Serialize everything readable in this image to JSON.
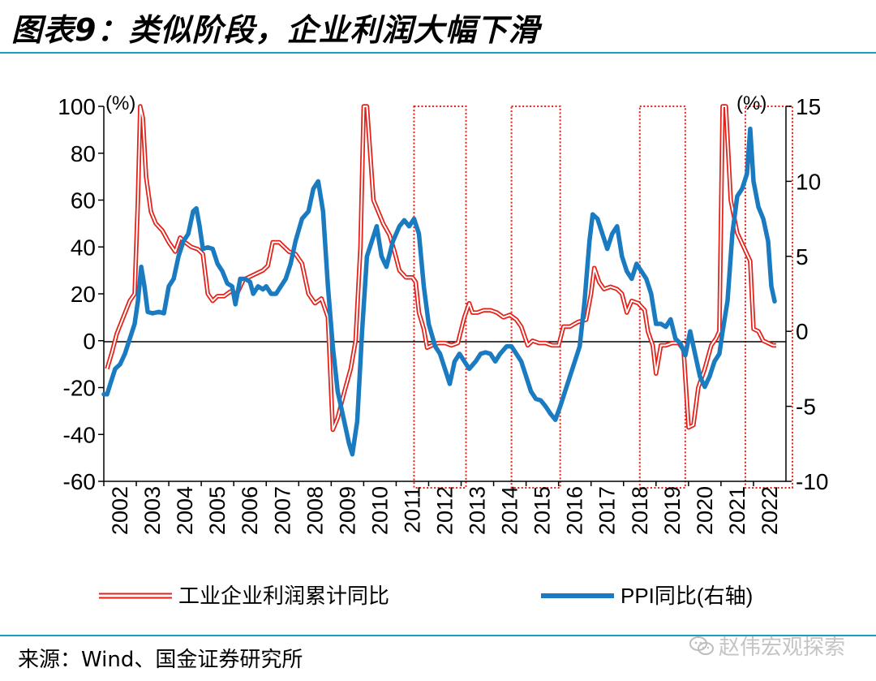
{
  "title": "图表9：类似阶段，企业利润大幅下滑",
  "source": "来源：Wind、国金证券研究所",
  "watermark": "赵伟宏观探索",
  "watermark_icon": "wechat-icon",
  "colors": {
    "profit": "#e32119",
    "ppi": "#1a7bc0",
    "box": "#e32119",
    "rule": "#1a9fc0"
  },
  "chart_data": {
    "type": "line",
    "left_unit": "(%)",
    "right_unit": "(%)",
    "ylim_left": [
      -60,
      100
    ],
    "ylim_right": [
      -10,
      15
    ],
    "left_ticks": [
      "100",
      "80",
      "60",
      "40",
      "20",
      "0",
      "-20",
      "-40",
      "-60"
    ],
    "right_ticks": [
      "15",
      "10",
      "5",
      "0",
      "-5",
      "-10"
    ],
    "x_labels": [
      "2002",
      "2003",
      "2004",
      "2005",
      "2006",
      "2007",
      "2008",
      "2009",
      "2010",
      "2011",
      "2012",
      "2013",
      "2014",
      "2015",
      "2016",
      "2017",
      "2018",
      "2019",
      "2020",
      "2021",
      "2022"
    ],
    "grid": false,
    "legend_position": "bottom",
    "highlight_periods": [
      {
        "start": 2011.55,
        "end": 2013.15
      },
      {
        "start": 2014.55,
        "end": 2016.05
      },
      {
        "start": 2018.5,
        "end": 2019.9
      },
      {
        "start": 2021.75,
        "end": 2023.2
      }
    ],
    "series": [
      {
        "name": "工业企业利润累计同比",
        "axis": "left",
        "style": "double-line",
        "points": [
          [
            2002.1,
            -12
          ],
          [
            2002.25,
            -5
          ],
          [
            2002.4,
            3
          ],
          [
            2002.6,
            10
          ],
          [
            2002.8,
            17
          ],
          [
            2002.95,
            20
          ],
          [
            2003.05,
            60
          ],
          [
            2003.12,
            100
          ],
          [
            2003.2,
            95
          ],
          [
            2003.3,
            70
          ],
          [
            2003.45,
            55
          ],
          [
            2003.6,
            50
          ],
          [
            2003.8,
            47
          ],
          [
            2004.0,
            42
          ],
          [
            2004.2,
            38
          ],
          [
            2004.35,
            44
          ],
          [
            2004.5,
            42
          ],
          [
            2004.7,
            40
          ],
          [
            2004.9,
            39
          ],
          [
            2005.05,
            37
          ],
          [
            2005.2,
            20
          ],
          [
            2005.35,
            17
          ],
          [
            2005.5,
            19
          ],
          [
            2005.7,
            19
          ],
          [
            2005.9,
            21
          ],
          [
            2006.1,
            20
          ],
          [
            2006.3,
            26
          ],
          [
            2006.6,
            28
          ],
          [
            2006.9,
            30
          ],
          [
            2007.05,
            32
          ],
          [
            2007.2,
            42
          ],
          [
            2007.4,
            42
          ],
          [
            2007.55,
            40
          ],
          [
            2007.7,
            38
          ],
          [
            2007.9,
            37
          ],
          [
            2008.1,
            33
          ],
          [
            2008.3,
            20
          ],
          [
            2008.5,
            16
          ],
          [
            2008.7,
            18
          ],
          [
            2008.9,
            10
          ],
          [
            2009.05,
            -38
          ],
          [
            2009.2,
            -33
          ],
          [
            2009.4,
            -22
          ],
          [
            2009.6,
            -12
          ],
          [
            2009.75,
            0
          ],
          [
            2009.9,
            40
          ],
          [
            2010.0,
            100
          ],
          [
            2010.1,
            100
          ],
          [
            2010.2,
            80
          ],
          [
            2010.3,
            60
          ],
          [
            2010.45,
            55
          ],
          [
            2010.6,
            50
          ],
          [
            2010.8,
            45
          ],
          [
            2010.95,
            38
          ],
          [
            2011.1,
            30
          ],
          [
            2011.3,
            27
          ],
          [
            2011.5,
            27
          ],
          [
            2011.6,
            25
          ],
          [
            2011.7,
            12
          ],
          [
            2011.85,
            5
          ],
          [
            2011.95,
            -3
          ],
          [
            2012.1,
            -2
          ],
          [
            2012.3,
            -1
          ],
          [
            2012.5,
            -1
          ],
          [
            2012.7,
            -2
          ],
          [
            2012.9,
            -1
          ],
          [
            2013.1,
            10
          ],
          [
            2013.25,
            16
          ],
          [
            2013.35,
            12
          ],
          [
            2013.5,
            12
          ],
          [
            2013.7,
            13
          ],
          [
            2013.9,
            13
          ],
          [
            2014.1,
            12
          ],
          [
            2014.3,
            10
          ],
          [
            2014.5,
            11
          ],
          [
            2014.7,
            9
          ],
          [
            2014.85,
            6
          ],
          [
            2015.05,
            -2
          ],
          [
            2015.2,
            0
          ],
          [
            2015.4,
            -1
          ],
          [
            2015.6,
            -1
          ],
          [
            2015.8,
            -2
          ],
          [
            2016.0,
            -2
          ],
          [
            2016.15,
            6
          ],
          [
            2016.35,
            6
          ],
          [
            2016.6,
            8
          ],
          [
            2016.85,
            9
          ],
          [
            2017.0,
            20
          ],
          [
            2017.1,
            31
          ],
          [
            2017.25,
            25
          ],
          [
            2017.4,
            22
          ],
          [
            2017.6,
            23
          ],
          [
            2017.8,
            22
          ],
          [
            2017.95,
            20
          ],
          [
            2018.1,
            12
          ],
          [
            2018.25,
            17
          ],
          [
            2018.45,
            16
          ],
          [
            2018.65,
            13
          ],
          [
            2018.75,
            4
          ],
          [
            2018.9,
            -2
          ],
          [
            2019.0,
            -14
          ],
          [
            2019.15,
            -2
          ],
          [
            2019.3,
            -2
          ],
          [
            2019.5,
            -1
          ],
          [
            2019.7,
            -1
          ],
          [
            2019.85,
            -4
          ],
          [
            2020.0,
            -37
          ],
          [
            2020.15,
            -36
          ],
          [
            2020.3,
            -20
          ],
          [
            2020.5,
            -12
          ],
          [
            2020.7,
            -2
          ],
          [
            2020.85,
            1
          ],
          [
            2020.95,
            4
          ],
          [
            2021.05,
            100
          ],
          [
            2021.15,
            100
          ],
          [
            2021.3,
            60
          ],
          [
            2021.5,
            46
          ],
          [
            2021.7,
            40
          ],
          [
            2021.9,
            34
          ],
          [
            2022.0,
            5
          ],
          [
            2022.15,
            4
          ],
          [
            2022.3,
            0
          ],
          [
            2022.45,
            -1
          ],
          [
            2022.6,
            -2
          ],
          [
            2022.7,
            -2
          ]
        ]
      },
      {
        "name": "PPI同比(右轴)",
        "axis": "right",
        "style": "thick-line",
        "points": [
          [
            2002.0,
            -4.2
          ],
          [
            2002.1,
            -4.2
          ],
          [
            2002.2,
            -3.5
          ],
          [
            2002.35,
            -2.5
          ],
          [
            2002.5,
            -2.2
          ],
          [
            2002.65,
            -1.5
          ],
          [
            2002.8,
            -0.5
          ],
          [
            2002.95,
            0.5
          ],
          [
            2003.05,
            2.0
          ],
          [
            2003.15,
            4.3
          ],
          [
            2003.25,
            3.0
          ],
          [
            2003.35,
            1.3
          ],
          [
            2003.5,
            1.2
          ],
          [
            2003.7,
            1.3
          ],
          [
            2003.85,
            1.2
          ],
          [
            2004.0,
            3.0
          ],
          [
            2004.15,
            3.5
          ],
          [
            2004.3,
            5.0
          ],
          [
            2004.45,
            6.0
          ],
          [
            2004.6,
            6.5
          ],
          [
            2004.75,
            8.0
          ],
          [
            2004.85,
            8.2
          ],
          [
            2004.95,
            7.0
          ],
          [
            2005.05,
            5.5
          ],
          [
            2005.2,
            5.6
          ],
          [
            2005.35,
            5.5
          ],
          [
            2005.5,
            4.5
          ],
          [
            2005.65,
            4.0
          ],
          [
            2005.8,
            3.2
          ],
          [
            2005.95,
            3.0
          ],
          [
            2006.05,
            1.8
          ],
          [
            2006.2,
            3.5
          ],
          [
            2006.35,
            3.5
          ],
          [
            2006.5,
            3.3
          ],
          [
            2006.6,
            2.5
          ],
          [
            2006.75,
            3.0
          ],
          [
            2006.9,
            2.8
          ],
          [
            2007.0,
            3.0
          ],
          [
            2007.15,
            2.5
          ],
          [
            2007.3,
            2.5
          ],
          [
            2007.45,
            3.0
          ],
          [
            2007.6,
            3.5
          ],
          [
            2007.75,
            4.5
          ],
          [
            2007.9,
            6.0
          ],
          [
            2008.1,
            7.5
          ],
          [
            2008.3,
            8.0
          ],
          [
            2008.45,
            9.5
          ],
          [
            2008.6,
            10.0
          ],
          [
            2008.75,
            8.0
          ],
          [
            2008.9,
            3.0
          ],
          [
            2009.05,
            -1.0
          ],
          [
            2009.2,
            -4.0
          ],
          [
            2009.4,
            -6.0
          ],
          [
            2009.55,
            -7.5
          ],
          [
            2009.65,
            -8.2
          ],
          [
            2009.8,
            -6.0
          ],
          [
            2009.95,
            0.0
          ],
          [
            2010.1,
            5.0
          ],
          [
            2010.25,
            6.0
          ],
          [
            2010.4,
            7.0
          ],
          [
            2010.55,
            5.0
          ],
          [
            2010.7,
            4.3
          ],
          [
            2010.9,
            6.0
          ],
          [
            2011.1,
            7.0
          ],
          [
            2011.25,
            7.4
          ],
          [
            2011.4,
            7.0
          ],
          [
            2011.55,
            7.5
          ],
          [
            2011.7,
            6.5
          ],
          [
            2011.85,
            3.0
          ],
          [
            2012.0,
            0.5
          ],
          [
            2012.2,
            -1.0
          ],
          [
            2012.35,
            -1.5
          ],
          [
            2012.5,
            -2.5
          ],
          [
            2012.65,
            -3.5
          ],
          [
            2012.8,
            -2.0
          ],
          [
            2012.95,
            -1.5
          ],
          [
            2013.1,
            -2.0
          ],
          [
            2013.25,
            -2.5
          ],
          [
            2013.45,
            -2.0
          ],
          [
            2013.6,
            -1.5
          ],
          [
            2013.75,
            -1.4
          ],
          [
            2013.9,
            -1.5
          ],
          [
            2014.05,
            -2.0
          ],
          [
            2014.2,
            -1.5
          ],
          [
            2014.4,
            -1.0
          ],
          [
            2014.55,
            -1.0
          ],
          [
            2014.7,
            -1.5
          ],
          [
            2014.85,
            -2.0
          ],
          [
            2015.0,
            -3.0
          ],
          [
            2015.15,
            -4.0
          ],
          [
            2015.3,
            -4.5
          ],
          [
            2015.45,
            -4.6
          ],
          [
            2015.6,
            -5.0
          ],
          [
            2015.75,
            -5.5
          ],
          [
            2015.9,
            -5.9
          ],
          [
            2016.05,
            -5.0
          ],
          [
            2016.2,
            -4.0
          ],
          [
            2016.35,
            -3.0
          ],
          [
            2016.5,
            -2.0
          ],
          [
            2016.65,
            -1.0
          ],
          [
            2016.8,
            2.0
          ],
          [
            2016.95,
            6.0
          ],
          [
            2017.05,
            7.8
          ],
          [
            2017.2,
            7.5
          ],
          [
            2017.35,
            6.5
          ],
          [
            2017.5,
            5.5
          ],
          [
            2017.65,
            6.5
          ],
          [
            2017.8,
            7.0
          ],
          [
            2017.95,
            5.0
          ],
          [
            2018.1,
            4.0
          ],
          [
            2018.25,
            3.5
          ],
          [
            2018.4,
            4.5
          ],
          [
            2018.55,
            4.0
          ],
          [
            2018.7,
            3.5
          ],
          [
            2018.85,
            2.5
          ],
          [
            2019.0,
            0.5
          ],
          [
            2019.15,
            0.5
          ],
          [
            2019.3,
            0.3
          ],
          [
            2019.45,
            0.8
          ],
          [
            2019.6,
            -0.5
          ],
          [
            2019.75,
            -0.8
          ],
          [
            2019.9,
            -1.6
          ],
          [
            2020.05,
            0.0
          ],
          [
            2020.2,
            -1.5
          ],
          [
            2020.35,
            -3.0
          ],
          [
            2020.5,
            -3.7
          ],
          [
            2020.65,
            -3.0
          ],
          [
            2020.8,
            -2.0
          ],
          [
            2020.95,
            -1.5
          ],
          [
            2021.05,
            0.0
          ],
          [
            2021.2,
            2.0
          ],
          [
            2021.35,
            6.5
          ],
          [
            2021.5,
            9.0
          ],
          [
            2021.65,
            9.5
          ],
          [
            2021.8,
            10.5
          ],
          [
            2021.9,
            13.5
          ],
          [
            2022.0,
            10.0
          ],
          [
            2022.15,
            8.3
          ],
          [
            2022.3,
            7.5
          ],
          [
            2022.45,
            6.0
          ],
          [
            2022.55,
            3.0
          ],
          [
            2022.65,
            2.0
          ]
        ]
      }
    ]
  }
}
